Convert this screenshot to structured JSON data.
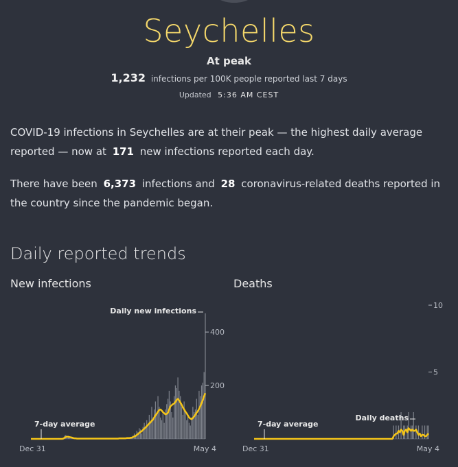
{
  "header": {
    "country": "Seychelles",
    "status": "At peak",
    "rate_value": "1,232",
    "rate_text": "infections per 100K people reported last 7 days",
    "updated_label": "Updated",
    "updated_time": "5:36 AM CEST"
  },
  "summary": {
    "p1_a": "COVID-19 infections in Seychelles are at their peak — the highest daily average reported — now at",
    "p1_value": "171",
    "p1_b": "new infections reported each day.",
    "p2_a": "There have been",
    "p2_infections": "6,373",
    "p2_b": "infections and",
    "p2_deaths": "28",
    "p2_c": "coronavirus-related deaths reported in the country since the pandemic began."
  },
  "section_title": "Daily reported trends",
  "colors": {
    "average_line": "#f5c518",
    "bars": "#8a8e96",
    "accent_title": "#f5d86b"
  },
  "chart_data": [
    {
      "type": "bar",
      "title": "New infections",
      "x_start": "Dec 31",
      "x_end": "May 4",
      "y_ticks": [
        200,
        400
      ],
      "ylim": [
        0,
        480
      ],
      "bar_label": "Daily new infections",
      "avg_label": "7-day average",
      "daily": [
        0,
        0,
        0,
        1,
        0,
        0,
        2,
        0,
        0,
        0,
        1,
        0,
        0,
        0,
        0,
        1,
        0,
        0,
        0,
        0,
        0,
        0,
        3,
        0,
        1,
        0,
        0,
        12,
        15,
        8,
        10,
        6,
        4,
        3,
        5,
        2,
        1,
        0,
        2,
        1,
        0,
        1,
        0,
        1,
        0,
        0,
        1,
        0,
        2,
        0,
        1,
        0,
        0,
        1,
        1,
        2,
        1,
        0,
        2,
        1,
        0,
        1,
        2,
        1,
        0,
        2,
        1,
        3,
        2,
        1,
        0,
        3,
        2,
        1,
        2,
        3,
        2,
        5,
        4,
        6,
        3,
        8,
        12,
        20,
        15,
        30,
        25,
        40,
        35,
        20,
        45,
        60,
        40,
        70,
        55,
        90,
        65,
        120,
        80,
        110,
        140,
        95,
        160,
        120,
        80,
        70,
        95,
        60,
        110,
        130,
        150,
        180,
        140,
        100,
        80,
        160,
        200,
        190,
        230,
        180,
        160,
        120,
        90,
        140,
        100,
        70,
        90,
        60,
        50,
        80,
        120,
        100,
        110,
        150,
        90,
        180,
        160,
        200,
        210,
        250,
        470
      ],
      "avg": [
        0,
        0,
        0,
        0,
        0,
        0,
        0,
        0,
        0,
        0,
        0,
        0,
        0,
        0,
        0,
        0,
        0,
        0,
        0,
        0,
        0,
        0,
        0,
        0,
        0,
        0,
        1,
        4,
        7,
        8,
        8,
        7,
        6,
        5,
        3,
        2,
        2,
        1,
        1,
        1,
        1,
        1,
        1,
        1,
        1,
        1,
        1,
        1,
        1,
        1,
        1,
        1,
        1,
        1,
        1,
        1,
        1,
        1,
        1,
        1,
        1,
        1,
        1,
        1,
        1,
        1,
        1,
        1,
        1,
        1,
        1,
        2,
        2,
        2,
        2,
        2,
        2,
        3,
        3,
        3,
        4,
        5,
        7,
        9,
        11,
        15,
        18,
        22,
        26,
        29,
        34,
        38,
        42,
        48,
        52,
        58,
        62,
        68,
        72,
        80,
        88,
        94,
        102,
        108,
        110,
        106,
        100,
        96,
        92,
        94,
        98,
        110,
        122,
        126,
        130,
        132,
        138,
        146,
        150,
        144,
        136,
        128,
        118,
        110,
        102,
        96,
        88,
        80,
        76,
        74,
        78,
        84,
        90,
        98,
        104,
        112,
        122,
        134,
        146,
        160,
        171
      ]
    },
    {
      "type": "bar",
      "title": "Deaths",
      "x_start": "Dec 31",
      "x_end": "May 4",
      "y_ticks": [
        5,
        10
      ],
      "ylim": [
        0,
        10
      ],
      "bar_label": "Daily deaths",
      "avg_label": "7-day average",
      "daily": [
        0,
        0,
        0,
        0,
        0,
        0,
        0,
        0,
        0,
        0,
        0,
        0,
        0,
        0,
        0,
        0,
        0,
        0,
        0,
        0,
        0,
        0,
        0,
        0,
        0,
        0,
        0,
        0,
        0,
        0,
        0,
        0,
        0,
        0,
        0,
        0,
        0,
        0,
        0,
        0,
        0,
        0,
        0,
        0,
        0,
        0,
        0,
        0,
        0,
        0,
        0,
        0,
        0,
        0,
        0,
        0,
        0,
        0,
        0,
        0,
        0,
        0,
        0,
        0,
        0,
        0,
        0,
        0,
        0,
        0,
        0,
        0,
        0,
        0,
        0,
        0,
        0,
        0,
        0,
        0,
        0,
        0,
        0,
        0,
        0,
        0,
        0,
        0,
        0,
        0,
        0,
        0,
        0,
        0,
        0,
        0,
        0,
        0,
        0,
        0,
        0,
        0,
        0,
        0,
        0,
        0,
        0,
        0,
        0,
        0,
        0,
        0,
        1,
        0,
        1,
        0,
        1,
        0,
        2,
        0,
        1,
        1,
        0,
        1,
        2,
        0,
        1,
        1,
        2,
        0,
        1,
        0,
        1,
        0,
        0,
        1,
        0,
        1,
        0,
        1,
        1
      ],
      "avg": [
        0,
        0,
        0,
        0,
        0,
        0,
        0,
        0,
        0,
        0,
        0,
        0,
        0,
        0,
        0,
        0,
        0,
        0,
        0,
        0,
        0,
        0,
        0,
        0,
        0,
        0,
        0,
        0,
        0,
        0,
        0,
        0,
        0,
        0,
        0,
        0,
        0,
        0,
        0,
        0,
        0,
        0,
        0,
        0,
        0,
        0,
        0,
        0,
        0,
        0,
        0,
        0,
        0,
        0,
        0,
        0,
        0,
        0,
        0,
        0,
        0,
        0,
        0,
        0,
        0,
        0,
        0,
        0,
        0,
        0,
        0,
        0,
        0,
        0,
        0,
        0,
        0,
        0,
        0,
        0,
        0,
        0,
        0,
        0,
        0,
        0,
        0,
        0,
        0,
        0,
        0,
        0,
        0,
        0,
        0,
        0,
        0,
        0,
        0,
        0,
        0,
        0,
        0,
        0,
        0,
        0,
        0,
        0,
        0,
        0,
        0,
        0,
        0.2,
        0.3,
        0.4,
        0.4,
        0.6,
        0.5,
        0.7,
        0.6,
        0.3,
        0.6,
        0.7,
        0.5,
        0.8,
        0.7,
        0.6,
        0.7,
        0.6,
        0.6,
        0.7,
        0.5,
        0.3,
        0.4,
        0.2,
        0.3,
        0.3,
        0.2,
        0.2,
        0.3,
        0.4
      ]
    }
  ]
}
